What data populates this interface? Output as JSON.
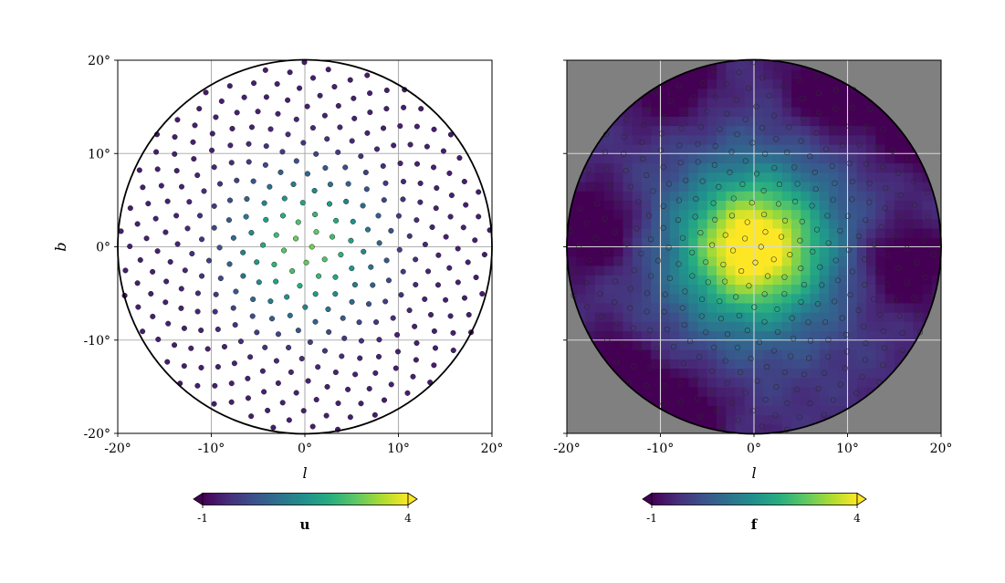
{
  "chart_data": [
    {
      "type": "scatter",
      "xlabel": "l",
      "ylabel": "b",
      "xlim": [
        -20,
        20
      ],
      "ylim": [
        -20,
        20
      ],
      "xticks": [
        "-20°",
        "-10°",
        "0°",
        "10°",
        "20°"
      ],
      "yticks": [
        "20°",
        "10°",
        "0°",
        "-10°",
        "-20°"
      ],
      "grid": true,
      "disk_radius_deg": 20,
      "point_spacing_deg": 2.0,
      "colorbar": {
        "label": "u",
        "min": -1,
        "max": 4,
        "tick_labels": [
          "-1",
          "4"
        ],
        "colormap": "viridis",
        "extend": "both"
      }
    },
    {
      "type": "heatmap",
      "xlabel": "l",
      "ylabel": "",
      "xlim": [
        -20,
        20
      ],
      "ylim": [
        -20,
        20
      ],
      "xticks": [
        "-20°",
        "-10°",
        "0°",
        "10°",
        "20°"
      ],
      "grid": true,
      "disk_radius_deg": 20,
      "outside_color": "#808080",
      "point_spacing_deg": 2.0,
      "colorbar": {
        "label": "f",
        "min": -1,
        "max": 4,
        "tick_labels": [
          "-1",
          "4"
        ],
        "colormap": "viridis",
        "extend": "both"
      }
    }
  ],
  "colors": {
    "grid_light": "#b0b0b0",
    "grid_on_heatmap": "#d8d8d8",
    "axes": "#000000"
  }
}
